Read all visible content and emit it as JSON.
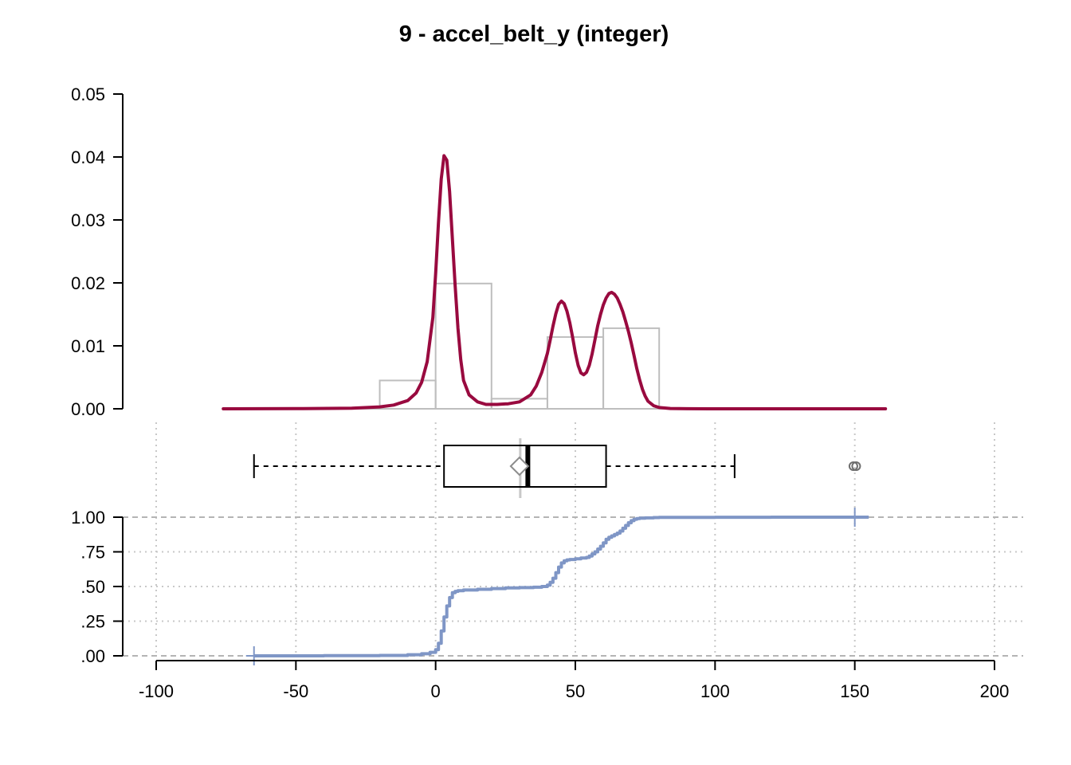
{
  "title": "9 - accel_belt_y (integer)",
  "colors": {
    "density": "#990a3f",
    "histogram": "#bebebe",
    "ecdf": "#7f96c6",
    "grid": "#c8c8c8",
    "reference": "#b4b4b4",
    "axis": "#000000"
  },
  "chart_data": [
    {
      "type": "histogram",
      "panel": "density",
      "ylim": [
        0,
        0.05
      ],
      "y_ticks": [
        "0.00",
        "0.01",
        "0.02",
        "0.03",
        "0.04",
        "0.05"
      ],
      "y_tick_values": [
        0,
        0.01,
        0.02,
        0.03,
        0.04,
        0.05
      ],
      "bins": [
        {
          "x0": -20,
          "x1": 0,
          "density": 0.0045
        },
        {
          "x0": 0,
          "x1": 20,
          "density": 0.0199
        },
        {
          "x0": 20,
          "x1": 40,
          "density": 0.0016
        },
        {
          "x0": 40,
          "x1": 60,
          "density": 0.0114
        },
        {
          "x0": 60,
          "x1": 80,
          "density": 0.0128
        }
      ],
      "density_curve": {
        "x": [
          -76,
          -50,
          -30,
          -20,
          -15,
          -10,
          -7,
          -5,
          -3,
          -1,
          0,
          1,
          2,
          3,
          4,
          5,
          6,
          7,
          8,
          9,
          10,
          12,
          15,
          18,
          22,
          26,
          30,
          34,
          36,
          38,
          40,
          41,
          42,
          43,
          44,
          45,
          46,
          47,
          48,
          49,
          50,
          51,
          52,
          53,
          54,
          55,
          56,
          57,
          58,
          59,
          60,
          61,
          62,
          63,
          64,
          65,
          66,
          67,
          68,
          69,
          70,
          71,
          72,
          73,
          74,
          75,
          76,
          78,
          80,
          84,
          90,
          100,
          120,
          140,
          161
        ],
        "y": [
          0,
          2e-05,
          0.0001,
          0.0003,
          0.0006,
          0.0013,
          0.0025,
          0.0042,
          0.0075,
          0.0145,
          0.0215,
          0.0295,
          0.0365,
          0.0402,
          0.0395,
          0.0345,
          0.027,
          0.0195,
          0.0128,
          0.0078,
          0.0045,
          0.0022,
          0.0011,
          0.0007,
          0.0007,
          0.0008,
          0.0011,
          0.0022,
          0.0036,
          0.0058,
          0.0088,
          0.0109,
          0.0131,
          0.0151,
          0.0166,
          0.0171,
          0.0167,
          0.0155,
          0.0137,
          0.0114,
          0.0089,
          0.0069,
          0.0057,
          0.0054,
          0.0058,
          0.0069,
          0.0087,
          0.0109,
          0.0132,
          0.015,
          0.0165,
          0.0176,
          0.0183,
          0.0185,
          0.0182,
          0.0176,
          0.0166,
          0.0154,
          0.0139,
          0.0123,
          0.0105,
          0.0085,
          0.0064,
          0.0046,
          0.0031,
          0.002,
          0.0012,
          0.0005,
          0.0002,
          5e-05,
          1e-05,
          0,
          0,
          0,
          0
        ]
      }
    },
    {
      "type": "boxplot",
      "panel": "boxplot",
      "whisker_low": -65,
      "q1": 3,
      "median": 33,
      "q3": 61,
      "whisker_high": 107,
      "mean": 30,
      "outliers": [
        149.5,
        150.5
      ]
    },
    {
      "type": "line",
      "panel": "ecdf",
      "xlabel": "",
      "ylabel": "",
      "xlim": [
        -100,
        200
      ],
      "ylim": [
        0,
        1
      ],
      "x_ticks": [
        "-100",
        "-50",
        "0",
        "50",
        "100",
        "150",
        "200"
      ],
      "x_tick_values": [
        -100,
        -50,
        0,
        50,
        100,
        150,
        200
      ],
      "y_ticks": [
        ".00",
        ".25",
        ".50",
        ".75",
        "1.00"
      ],
      "y_tick_values": [
        0,
        0.25,
        0.5,
        0.75,
        1
      ],
      "grid": true,
      "x": [
        -65,
        -40,
        -20,
        -10,
        -5,
        -2,
        0,
        1,
        2,
        3,
        4,
        5,
        6,
        7,
        8,
        10,
        15,
        20,
        25,
        30,
        35,
        38,
        40,
        41,
        42,
        43,
        44,
        45,
        46,
        47,
        48,
        50,
        52,
        54,
        55,
        56,
        57,
        58,
        59,
        60,
        61,
        62,
        63,
        64,
        65,
        66,
        67,
        68,
        69,
        70,
        71,
        72,
        73,
        75,
        78,
        80,
        90,
        100,
        120,
        150
      ],
      "y": [
        0,
        0.001,
        0.003,
        0.008,
        0.015,
        0.025,
        0.045,
        0.09,
        0.18,
        0.28,
        0.36,
        0.42,
        0.455,
        0.465,
        0.47,
        0.475,
        0.48,
        0.485,
        0.49,
        0.492,
        0.495,
        0.5,
        0.51,
        0.53,
        0.56,
        0.6,
        0.64,
        0.67,
        0.685,
        0.692,
        0.695,
        0.7,
        0.705,
        0.71,
        0.72,
        0.735,
        0.75,
        0.77,
        0.79,
        0.815,
        0.84,
        0.855,
        0.865,
        0.875,
        0.885,
        0.9,
        0.92,
        0.94,
        0.96,
        0.975,
        0.985,
        0.99,
        0.993,
        0.995,
        0.997,
        0.998,
        0.999,
        0.9995,
        0.9998,
        1
      ],
      "endpoints": [
        {
          "x": -65,
          "y": 0
        },
        {
          "x": 150,
          "y": 1
        }
      ]
    }
  ]
}
